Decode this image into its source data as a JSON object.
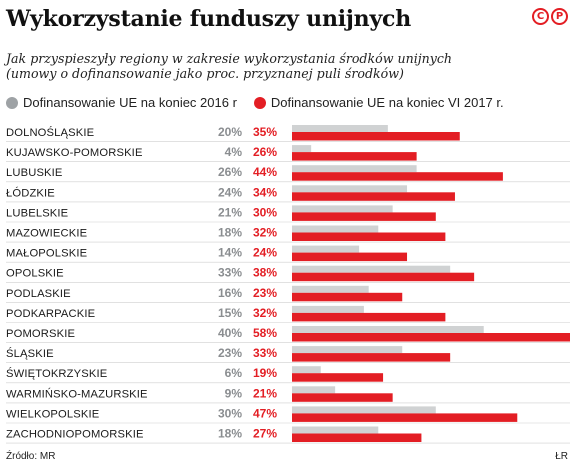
{
  "header": {
    "title": "Wykorzystanie funduszy unijnych",
    "subtitle_line1": "Jak przyspieszyły regiony w zakresie wykorzystania środków unijnych",
    "subtitle_line2": "(umowy o dofinansowanie jako proc. przyznanej puli środków)",
    "logo_letters": [
      "C",
      "P"
    ]
  },
  "colors": {
    "grey_series": "#d0d2d3",
    "grey_dot": "#9ea2a5",
    "grey_text": "#8a8d90",
    "red_series": "#e31e24",
    "red_text": "#e31e24",
    "row_rule": "#cfcfcf"
  },
  "legend": {
    "item1": "Dofinansowanie UE na koniec 2016 r",
    "item2": "Dofinansowanie UE na koniec VI 2017 r."
  },
  "footer": {
    "source": "Źródło: MR",
    "credit": "ŁR"
  },
  "chart_data": {
    "type": "bar",
    "orientation": "horizontal",
    "value_suffix": "%",
    "xlim": [
      0,
      58
    ],
    "categories": [
      "DOLNOŚLĄSKIE",
      "KUJAWSKO-POMORSKIE",
      "LUBUSKIE",
      "ŁÓDZKIE",
      "LUBELSKIE",
      "MAZOWIECKIE",
      "MAŁOPOLSKIE",
      "OPOLSKIE",
      "PODLASKIE",
      "PODKARPACKIE",
      "POMORSKIE",
      "ŚLĄSKIE",
      "ŚWIĘTOKRZYSKIE",
      "WARMIŃSKO-MAZURSKIE",
      "WIELKOPOLSKIE",
      "ZACHODNIOPOMORSKIE"
    ],
    "series": [
      {
        "name": "Dofinansowanie UE na koniec 2016 r",
        "values": [
          20,
          4,
          26,
          24,
          21,
          18,
          14,
          33,
          16,
          15,
          40,
          23,
          6,
          9,
          30,
          18
        ]
      },
      {
        "name": "Dofinansowanie UE na koniec VI 2017 r.",
        "values": [
          35,
          26,
          44,
          34,
          30,
          32,
          24,
          38,
          23,
          32,
          58,
          33,
          19,
          21,
          47,
          27
        ]
      }
    ]
  }
}
